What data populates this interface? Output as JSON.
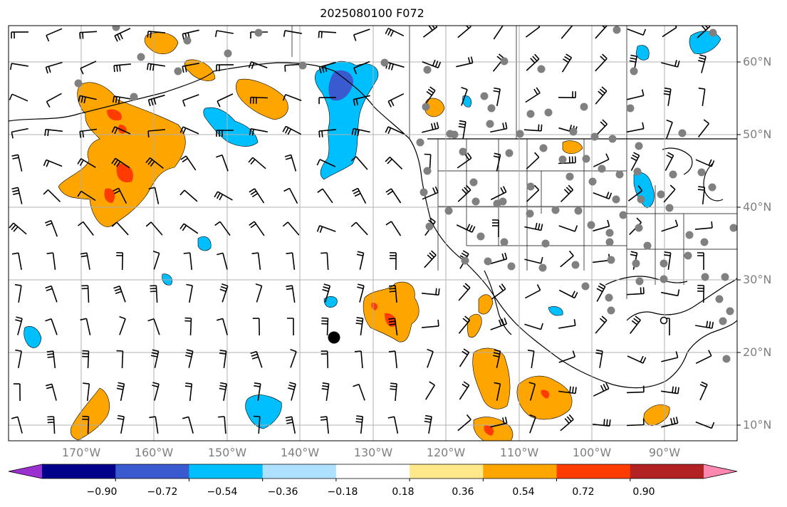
{
  "title": "2025080100 F072",
  "lat_labels": [
    "60°N",
    "50°N",
    "40°N",
    "30°N",
    "20°N",
    "10°N"
  ],
  "lon_labels": [
    "170°W",
    "160°W",
    "150°W",
    "140°W",
    "130°W",
    "120°W",
    "110°W",
    "100°W",
    "90°W"
  ],
  "colorbar": {
    "levels": [
      "−0.90",
      "−0.72",
      "−0.54",
      "−0.36",
      "−0.18",
      "0.18",
      "0.36",
      "0.54",
      "0.72",
      "0.90"
    ],
    "colors": [
      "#9b30d0",
      "#00008b",
      "#3a5bcf",
      "#00bfff",
      "#aee0ff",
      "#ffffff",
      "#ffe88a",
      "#ffa500",
      "#ff3c00",
      "#b22222",
      "#ff88b0"
    ]
  },
  "palette": {
    "land_border": "#000000",
    "grid": "#b0b0b0",
    "station_marker": "#808080",
    "barb": "#000000"
  }
}
